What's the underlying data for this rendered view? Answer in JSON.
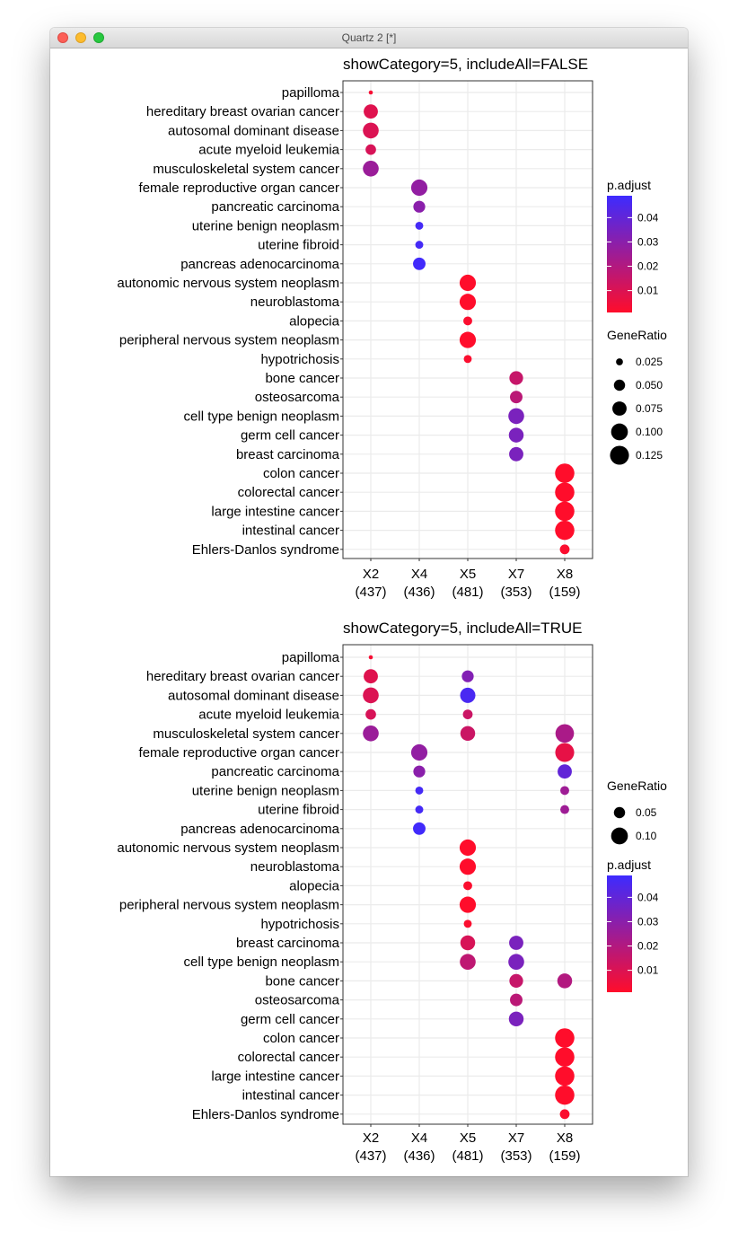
{
  "window": {
    "title": "Quartz 2 [*]"
  },
  "colors": {
    "low": "#ff0d2b",
    "high": "#3d2bff",
    "grid": "#ebebeb",
    "panel_border": "#333333"
  },
  "chart_data": [
    {
      "type": "scatter",
      "title": "showCategory=5, includeAll=FALSE",
      "x_categories": [
        "X2\n(437)",
        "X4\n(436)",
        "X5\n(481)",
        "X7\n(353)",
        "X8\n(159)"
      ],
      "y_categories": [
        "papilloma",
        "hereditary breast ovarian cancer",
        "autosomal dominant disease",
        "acute myeloid leukemia",
        "musculoskeletal system cancer",
        "female reproductive organ cancer",
        "pancreatic carcinoma",
        "uterine benign neoplasm",
        "uterine fibroid",
        "pancreas adenocarcinoma",
        "autonomic nervous system neoplasm",
        "neuroblastoma",
        "alopecia",
        "peripheral nervous system neoplasm",
        "hypotrichosis",
        "bone cancer",
        "osteosarcoma",
        "cell type benign neoplasm",
        "germ cell cancer",
        "breast carcinoma",
        "colon cancer",
        "colorectal cancer",
        "large intestine cancer",
        "intestinal cancer",
        "Ehlers-Danlos syndrome"
      ],
      "color_legend": {
        "title": "p.adjust",
        "ticks": [
          0.04,
          0.03,
          0.02,
          0.01
        ],
        "range": [
          0.001,
          0.049
        ]
      },
      "size_legend": {
        "title": "GeneRatio",
        "ticks": [
          0.025,
          0.05,
          0.075,
          0.1,
          0.125
        ],
        "tick_labels": [
          "0.025",
          "0.050",
          "0.075",
          "0.100",
          "0.125"
        ],
        "range": [
          0.015,
          0.14
        ]
      },
      "points": [
        {
          "x": "X2\n(437)",
          "y": "papilloma",
          "GeneRatio": 0.015,
          "p_adjust": 0.003
        },
        {
          "x": "X2\n(437)",
          "y": "hereditary breast ovarian cancer",
          "GeneRatio": 0.075,
          "p_adjust": 0.009
        },
        {
          "x": "X2\n(437)",
          "y": "autosomal dominant disease",
          "GeneRatio": 0.09,
          "p_adjust": 0.01
        },
        {
          "x": "X2\n(437)",
          "y": "acute myeloid leukemia",
          "GeneRatio": 0.045,
          "p_adjust": 0.011
        },
        {
          "x": "X2\n(437)",
          "y": "musculoskeletal system cancer",
          "GeneRatio": 0.09,
          "p_adjust": 0.026
        },
        {
          "x": "X4\n(436)",
          "y": "female reproductive organ cancer",
          "GeneRatio": 0.095,
          "p_adjust": 0.028
        },
        {
          "x": "X4\n(436)",
          "y": "pancreatic carcinoma",
          "GeneRatio": 0.055,
          "p_adjust": 0.03
        },
        {
          "x": "X4\n(436)",
          "y": "uterine benign neoplasm",
          "GeneRatio": 0.03,
          "p_adjust": 0.047
        },
        {
          "x": "X4\n(436)",
          "y": "uterine fibroid",
          "GeneRatio": 0.03,
          "p_adjust": 0.047
        },
        {
          "x": "X4\n(436)",
          "y": "pancreas adenocarcinoma",
          "GeneRatio": 0.06,
          "p_adjust": 0.048
        },
        {
          "x": "X5\n(481)",
          "y": "autonomic nervous system neoplasm",
          "GeneRatio": 0.095,
          "p_adjust": 0.001
        },
        {
          "x": "X5\n(481)",
          "y": "neuroblastoma",
          "GeneRatio": 0.095,
          "p_adjust": 0.001
        },
        {
          "x": "X5\n(481)",
          "y": "alopecia",
          "GeneRatio": 0.035,
          "p_adjust": 0.002
        },
        {
          "x": "X5\n(481)",
          "y": "peripheral nervous system neoplasm",
          "GeneRatio": 0.095,
          "p_adjust": 0.001
        },
        {
          "x": "X5\n(481)",
          "y": "hypotrichosis",
          "GeneRatio": 0.03,
          "p_adjust": 0.002
        },
        {
          "x": "X7\n(353)",
          "y": "bone cancer",
          "GeneRatio": 0.07,
          "p_adjust": 0.015
        },
        {
          "x": "X7\n(353)",
          "y": "osteosarcoma",
          "GeneRatio": 0.06,
          "p_adjust": 0.018
        },
        {
          "x": "X7\n(353)",
          "y": "cell type benign neoplasm",
          "GeneRatio": 0.09,
          "p_adjust": 0.034
        },
        {
          "x": "X7\n(353)",
          "y": "germ cell cancer",
          "GeneRatio": 0.08,
          "p_adjust": 0.034
        },
        {
          "x": "X7\n(353)",
          "y": "breast carcinoma",
          "GeneRatio": 0.075,
          "p_adjust": 0.034
        },
        {
          "x": "X8\n(159)",
          "y": "colon cancer",
          "GeneRatio": 0.13,
          "p_adjust": 0.001
        },
        {
          "x": "X8\n(159)",
          "y": "colorectal cancer",
          "GeneRatio": 0.13,
          "p_adjust": 0.001
        },
        {
          "x": "X8\n(159)",
          "y": "large intestine cancer",
          "GeneRatio": 0.13,
          "p_adjust": 0.001
        },
        {
          "x": "X8\n(159)",
          "y": "intestinal cancer",
          "GeneRatio": 0.13,
          "p_adjust": 0.001
        },
        {
          "x": "X8\n(159)",
          "y": "Ehlers-Danlos syndrome",
          "GeneRatio": 0.04,
          "p_adjust": 0.002
        }
      ]
    },
    {
      "type": "scatter",
      "title": "showCategory=5, includeAll=TRUE",
      "x_categories": [
        "X2\n(437)",
        "X4\n(436)",
        "X5\n(481)",
        "X7\n(353)",
        "X8\n(159)"
      ],
      "y_categories": [
        "papilloma",
        "hereditary breast ovarian cancer",
        "autosomal dominant disease",
        "acute myeloid leukemia",
        "musculoskeletal system cancer",
        "female reproductive organ cancer",
        "pancreatic carcinoma",
        "uterine benign neoplasm",
        "uterine fibroid",
        "pancreas adenocarcinoma",
        "autonomic nervous system neoplasm",
        "neuroblastoma",
        "alopecia",
        "peripheral nervous system neoplasm",
        "hypotrichosis",
        "breast carcinoma",
        "cell type benign neoplasm",
        "bone cancer",
        "osteosarcoma",
        "germ cell cancer",
        "colon cancer",
        "colorectal cancer",
        "large intestine cancer",
        "intestinal cancer",
        "Ehlers-Danlos syndrome"
      ],
      "color_legend": {
        "title": "p.adjust",
        "ticks": [
          0.04,
          0.03,
          0.02,
          0.01
        ],
        "range": [
          0.001,
          0.049
        ]
      },
      "size_legend": {
        "title": "GeneRatio",
        "ticks": [
          0.05,
          0.1
        ],
        "tick_labels": [
          "0.05",
          "0.10"
        ],
        "range": [
          0.015,
          0.14
        ]
      },
      "points": [
        {
          "x": "X2\n(437)",
          "y": "papilloma",
          "GeneRatio": 0.015,
          "p_adjust": 0.003
        },
        {
          "x": "X2\n(437)",
          "y": "hereditary breast ovarian cancer",
          "GeneRatio": 0.075,
          "p_adjust": 0.009
        },
        {
          "x": "X2\n(437)",
          "y": "autosomal dominant disease",
          "GeneRatio": 0.09,
          "p_adjust": 0.01
        },
        {
          "x": "X2\n(437)",
          "y": "acute myeloid leukemia",
          "GeneRatio": 0.045,
          "p_adjust": 0.011
        },
        {
          "x": "X2\n(437)",
          "y": "musculoskeletal system cancer",
          "GeneRatio": 0.09,
          "p_adjust": 0.026
        },
        {
          "x": "X4\n(436)",
          "y": "female reproductive organ cancer",
          "GeneRatio": 0.095,
          "p_adjust": 0.028
        },
        {
          "x": "X4\n(436)",
          "y": "pancreatic carcinoma",
          "GeneRatio": 0.055,
          "p_adjust": 0.03
        },
        {
          "x": "X4\n(436)",
          "y": "uterine benign neoplasm",
          "GeneRatio": 0.03,
          "p_adjust": 0.047
        },
        {
          "x": "X4\n(436)",
          "y": "uterine fibroid",
          "GeneRatio": 0.03,
          "p_adjust": 0.047
        },
        {
          "x": "X4\n(436)",
          "y": "pancreas adenocarcinoma",
          "GeneRatio": 0.06,
          "p_adjust": 0.048
        },
        {
          "x": "X5\n(481)",
          "y": "hereditary breast ovarian cancer",
          "GeneRatio": 0.055,
          "p_adjust": 0.032
        },
        {
          "x": "X5\n(481)",
          "y": "autosomal dominant disease",
          "GeneRatio": 0.085,
          "p_adjust": 0.046
        },
        {
          "x": "X5\n(481)",
          "y": "acute myeloid leukemia",
          "GeneRatio": 0.04,
          "p_adjust": 0.014
        },
        {
          "x": "X5\n(481)",
          "y": "musculoskeletal system cancer",
          "GeneRatio": 0.08,
          "p_adjust": 0.014
        },
        {
          "x": "X5\n(481)",
          "y": "autonomic nervous system neoplasm",
          "GeneRatio": 0.095,
          "p_adjust": 0.001
        },
        {
          "x": "X5\n(481)",
          "y": "neuroblastoma",
          "GeneRatio": 0.095,
          "p_adjust": 0.001
        },
        {
          "x": "X5\n(481)",
          "y": "alopecia",
          "GeneRatio": 0.035,
          "p_adjust": 0.002
        },
        {
          "x": "X5\n(481)",
          "y": "peripheral nervous system neoplasm",
          "GeneRatio": 0.095,
          "p_adjust": 0.001
        },
        {
          "x": "X5\n(481)",
          "y": "hypotrichosis",
          "GeneRatio": 0.03,
          "p_adjust": 0.002
        },
        {
          "x": "X5\n(481)",
          "y": "breast carcinoma",
          "GeneRatio": 0.08,
          "p_adjust": 0.011
        },
        {
          "x": "X5\n(481)",
          "y": "cell type benign neoplasm",
          "GeneRatio": 0.09,
          "p_adjust": 0.017
        },
        {
          "x": "X7\n(353)",
          "y": "breast carcinoma",
          "GeneRatio": 0.075,
          "p_adjust": 0.034
        },
        {
          "x": "X7\n(353)",
          "y": "cell type benign neoplasm",
          "GeneRatio": 0.09,
          "p_adjust": 0.034
        },
        {
          "x": "X7\n(353)",
          "y": "bone cancer",
          "GeneRatio": 0.07,
          "p_adjust": 0.015
        },
        {
          "x": "X7\n(353)",
          "y": "osteosarcoma",
          "GeneRatio": 0.06,
          "p_adjust": 0.018
        },
        {
          "x": "X7\n(353)",
          "y": "germ cell cancer",
          "GeneRatio": 0.08,
          "p_adjust": 0.034
        },
        {
          "x": "X8\n(159)",
          "y": "musculoskeletal system cancer",
          "GeneRatio": 0.12,
          "p_adjust": 0.022
        },
        {
          "x": "X8\n(159)",
          "y": "female reproductive organ cancer",
          "GeneRatio": 0.125,
          "p_adjust": 0.007
        },
        {
          "x": "X8\n(159)",
          "y": "pancreatic carcinoma",
          "GeneRatio": 0.075,
          "p_adjust": 0.04
        },
        {
          "x": "X8\n(159)",
          "y": "uterine benign neoplasm",
          "GeneRatio": 0.035,
          "p_adjust": 0.025
        },
        {
          "x": "X8\n(159)",
          "y": "uterine fibroid",
          "GeneRatio": 0.035,
          "p_adjust": 0.025
        },
        {
          "x": "X8\n(159)",
          "y": "bone cancer",
          "GeneRatio": 0.08,
          "p_adjust": 0.02
        },
        {
          "x": "X8\n(159)",
          "y": "colon cancer",
          "GeneRatio": 0.13,
          "p_adjust": 0.001
        },
        {
          "x": "X8\n(159)",
          "y": "colorectal cancer",
          "GeneRatio": 0.13,
          "p_adjust": 0.001
        },
        {
          "x": "X8\n(159)",
          "y": "large intestine cancer",
          "GeneRatio": 0.13,
          "p_adjust": 0.001
        },
        {
          "x": "X8\n(159)",
          "y": "intestinal cancer",
          "GeneRatio": 0.13,
          "p_adjust": 0.001
        },
        {
          "x": "X8\n(159)",
          "y": "Ehlers-Danlos syndrome",
          "GeneRatio": 0.04,
          "p_adjust": 0.002
        }
      ]
    }
  ]
}
